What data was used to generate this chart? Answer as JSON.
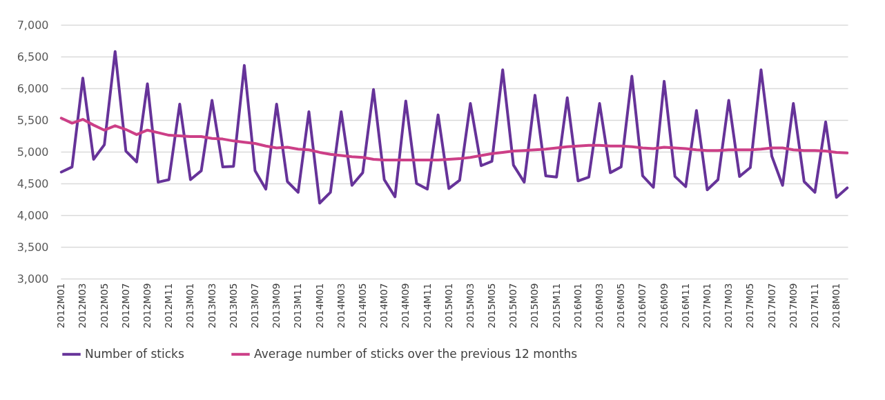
{
  "chart_data": {
    "type": "line",
    "categories": [
      "2012M01",
      null,
      "2012M03",
      null,
      "2012M05",
      null,
      "2012M07",
      null,
      "2012M09",
      null,
      "2012M11",
      null,
      "2013M01",
      null,
      "2013M03",
      null,
      "2013M05",
      null,
      "2013M07",
      null,
      "2013M09",
      null,
      "2013M11",
      null,
      "2014M01",
      null,
      "2014M03",
      null,
      "2014M05",
      null,
      "2014M07",
      null,
      "2014M09",
      null,
      "2014M11",
      null,
      "2015M01",
      null,
      "2015M03",
      null,
      "2015M05",
      null,
      "2015M07",
      null,
      "2015M09",
      null,
      "2015M11",
      null,
      "2016M01",
      null,
      "2016M03",
      null,
      "2016M05",
      null,
      "2016M07",
      null,
      "2016M09",
      null,
      "2016M11",
      null,
      "2017M01",
      null,
      "2017M03",
      null,
      "2017M05",
      null,
      "2017M07",
      null,
      "2017M09",
      null,
      "2017M11",
      null,
      "2018M01",
      null
    ],
    "series": [
      {
        "name": "Number of sticks",
        "color": "#663399",
        "values": [
          4680,
          4760,
          6160,
          4880,
          5110,
          6580,
          5010,
          4840,
          6070,
          4520,
          4560,
          5750,
          4560,
          4700,
          5810,
          4760,
          4770,
          6360,
          4700,
          4410,
          5750,
          4530,
          4360,
          5630,
          4190,
          4360,
          5630,
          4470,
          4670,
          5980,
          4560,
          4290,
          5800,
          4500,
          4410,
          5580,
          4420,
          4550,
          5760,
          4780,
          4850,
          6290,
          4790,
          4520,
          5890,
          4620,
          4600,
          5850,
          4540,
          4600,
          5760,
          4670,
          4760,
          6190,
          4620,
          4440,
          6110,
          4610,
          4450,
          5650,
          4400,
          4560,
          5810,
          4610,
          4750,
          6290,
          4930,
          4470,
          5760,
          4530,
          4360,
          5470,
          4280,
          4430
        ]
      },
      {
        "name": "Average number of sticks over the previous 12 months",
        "color": "#cc3f87",
        "values": [
          5530,
          5450,
          5510,
          5420,
          5340,
          5410,
          5350,
          5270,
          5340,
          5300,
          5260,
          5250,
          5240,
          5240,
          5210,
          5200,
          5170,
          5150,
          5130,
          5090,
          5060,
          5070,
          5040,
          5030,
          4990,
          4960,
          4940,
          4920,
          4910,
          4880,
          4870,
          4870,
          4870,
          4870,
          4870,
          4870,
          4880,
          4890,
          4910,
          4940,
          4970,
          4990,
          5010,
          5020,
          5030,
          5040,
          5060,
          5080,
          5090,
          5100,
          5100,
          5090,
          5090,
          5080,
          5060,
          5050,
          5070,
          5060,
          5050,
          5030,
          5020,
          5020,
          5030,
          5030,
          5030,
          5040,
          5060,
          5060,
          5030,
          5020,
          5020,
          5010,
          4990,
          4980
        ]
      }
    ],
    "ylim": [
      3000,
      7000
    ],
    "yticks": [
      {
        "value": 3000,
        "label": "3,000"
      },
      {
        "value": 3500,
        "label": "3,500"
      },
      {
        "value": 4000,
        "label": "4,000"
      },
      {
        "value": 4500,
        "label": "4,500"
      },
      {
        "value": 5000,
        "label": "5,000"
      },
      {
        "value": 5500,
        "label": "5,500"
      },
      {
        "value": 6000,
        "label": "6,000"
      },
      {
        "value": 6500,
        "label": "6,500"
      },
      {
        "value": 7000,
        "label": "7,000"
      }
    ],
    "grid": "y",
    "legend": "bottom",
    "line_style": "solid",
    "marker": "none"
  }
}
